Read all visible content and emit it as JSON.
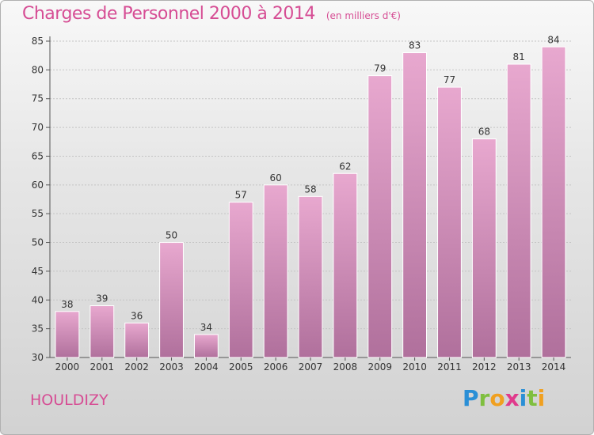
{
  "header": {
    "title": "Charges de Personnel 2000 à 2014",
    "subtitle": "(en milliers d'€)"
  },
  "footer": {
    "commune": "HOULDIZY",
    "logo_letters": [
      "P",
      "r",
      "o",
      "x",
      "i",
      "t",
      "i"
    ],
    "logo_colors": [
      "#2a8fd6",
      "#7fbf3f",
      "#f0a020",
      "#e03a8c",
      "#2a8fd6",
      "#7fbf3f",
      "#f0a020"
    ]
  },
  "chart_data": {
    "type": "bar",
    "categories": [
      "2000",
      "2001",
      "2002",
      "2003",
      "2004",
      "2005",
      "2006",
      "2007",
      "2008",
      "2009",
      "2010",
      "2011",
      "2012",
      "2013",
      "2014"
    ],
    "values": [
      38,
      39,
      36,
      50,
      34,
      57,
      60,
      58,
      62,
      79,
      83,
      77,
      68,
      81,
      84
    ],
    "ylim": [
      30,
      85
    ],
    "yticks": [
      30,
      35,
      40,
      45,
      50,
      55,
      60,
      65,
      70,
      75,
      80,
      85
    ],
    "grid": true,
    "bar_color_top": "#e8a8cf",
    "bar_color_bottom": "#b0709c",
    "accent_color": "#d64d94"
  }
}
